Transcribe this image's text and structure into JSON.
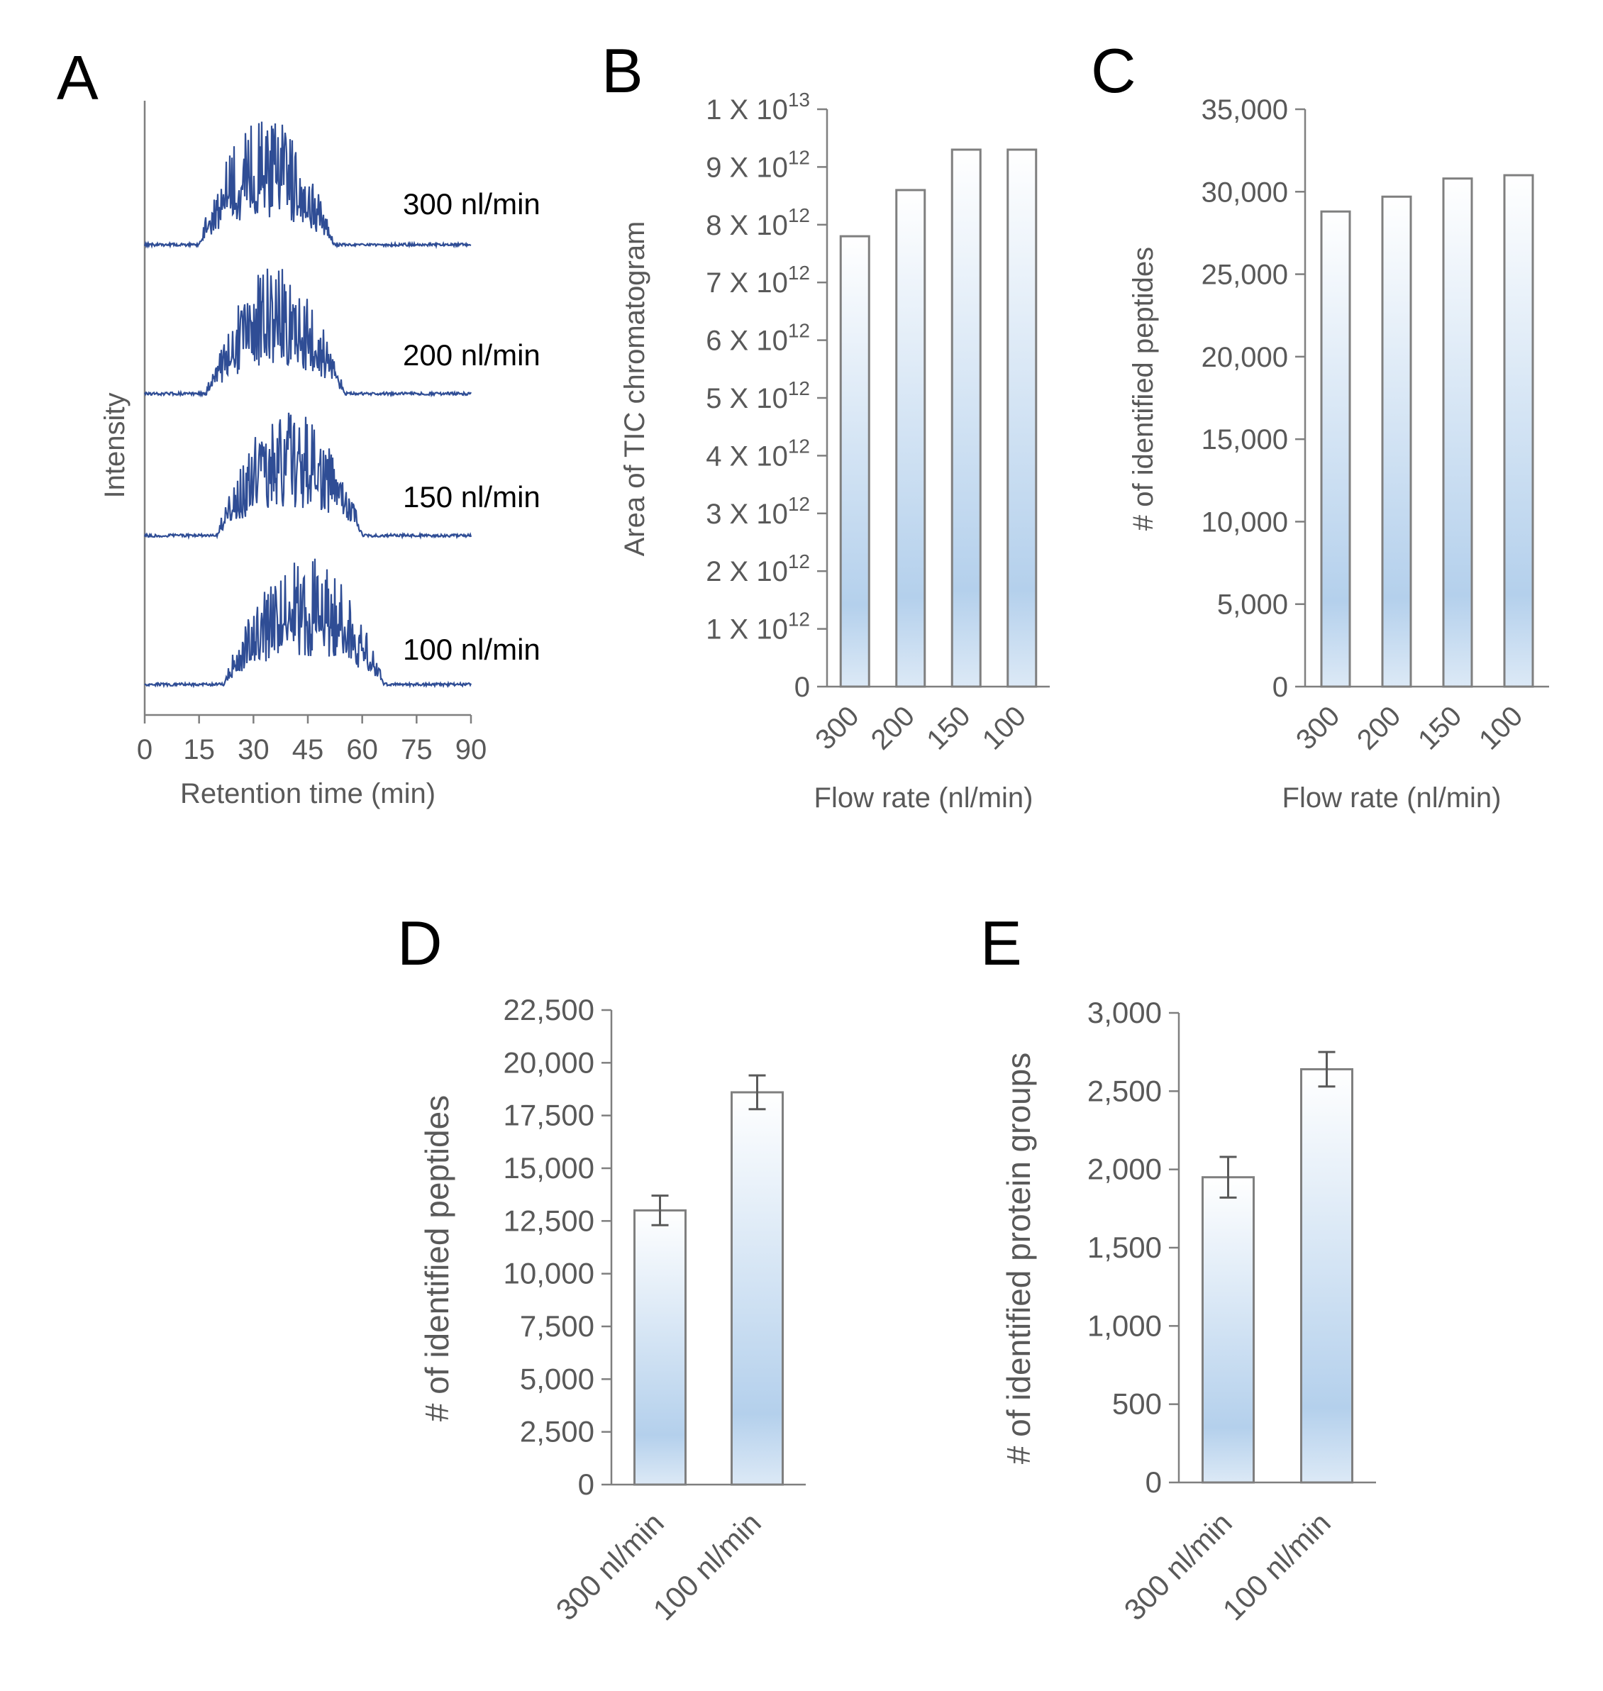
{
  "panels": {
    "A": {
      "letter": "A"
    },
    "B": {
      "letter": "B"
    },
    "C": {
      "letter": "C"
    },
    "D": {
      "letter": "D"
    },
    "E": {
      "letter": "E"
    }
  },
  "colors": {
    "trace": "#2f4d95",
    "bar_top": "#ffffff",
    "bar_mid": "#b4d0ec",
    "axis": "#7f7f7f",
    "text": "#595959"
  },
  "chart_data": [
    {
      "id": "A",
      "type": "line",
      "title": "",
      "xlabel": "Retention time (min)",
      "ylabel": "Intensity",
      "xlim": [
        0,
        90
      ],
      "xticks": [
        "0",
        "15",
        "30",
        "45",
        "60",
        "75",
        "90"
      ],
      "series": [
        {
          "name": "300 nl/min",
          "label": "300  nl/min",
          "onset": 15,
          "peak": 28,
          "end": 52
        },
        {
          "name": "200 nl/min",
          "label": "200  nl/min",
          "onset": 17,
          "peak": 31,
          "end": 55
        },
        {
          "name": "150 nl/min",
          "label": "150  nl/min",
          "onset": 20,
          "peak": 36,
          "end": 60
        },
        {
          "name": "100 nl/min",
          "label": "100  nl/min",
          "onset": 22,
          "peak": 43,
          "end": 66
        }
      ]
    },
    {
      "id": "B",
      "type": "bar",
      "title": "",
      "xlabel": "Flow rate (nl/min)",
      "ylabel": "Area of TIC chromatogram",
      "categories": [
        "300",
        "200",
        "150",
        "100"
      ],
      "values": [
        7.8,
        8.6,
        9.3,
        9.3
      ],
      "value_unit": "1 X 10^12",
      "ylim": [
        0,
        10
      ],
      "yticks": [
        {
          "v": 0,
          "base": "0",
          "exp": ""
        },
        {
          "v": 1,
          "base": "1 X 10",
          "exp": "12"
        },
        {
          "v": 2,
          "base": "2 X 10",
          "exp": "12"
        },
        {
          "v": 3,
          "base": "3 X 10",
          "exp": "12"
        },
        {
          "v": 4,
          "base": "4 X 10",
          "exp": "12"
        },
        {
          "v": 5,
          "base": "5 X 10",
          "exp": "12"
        },
        {
          "v": 6,
          "base": "6 X 10",
          "exp": "12"
        },
        {
          "v": 7,
          "base": "7 X 10",
          "exp": "12"
        },
        {
          "v": 8,
          "base": "8 X 10",
          "exp": "12"
        },
        {
          "v": 9,
          "base": "9 X 10",
          "exp": "12"
        },
        {
          "v": 10,
          "base": "1 X 10",
          "exp": "13"
        }
      ]
    },
    {
      "id": "C",
      "type": "bar",
      "title": "",
      "xlabel": "Flow rate (nl/min)",
      "ylabel": "# of identified  peptides",
      "categories": [
        "300",
        "200",
        "150",
        "100"
      ],
      "values": [
        28800,
        29700,
        30800,
        31000
      ],
      "ylim": [
        0,
        35000
      ],
      "yticks": [
        {
          "v": 0,
          "label": "0"
        },
        {
          "v": 5000,
          "label": "5,000"
        },
        {
          "v": 10000,
          "label": "10,000"
        },
        {
          "v": 15000,
          "label": "15,000"
        },
        {
          "v": 20000,
          "label": "20,000"
        },
        {
          "v": 25000,
          "label": "25,000"
        },
        {
          "v": 30000,
          "label": "30,000"
        },
        {
          "v": 35000,
          "label": "35,000"
        }
      ]
    },
    {
      "id": "D",
      "type": "bar",
      "title": "",
      "xlabel": "",
      "ylabel": "# of identified peptides",
      "categories": [
        "300 nl/min",
        "100 nl/min"
      ],
      "values": [
        13000,
        18600
      ],
      "errors": [
        700,
        800
      ],
      "ylim": [
        0,
        22500
      ],
      "yticks": [
        {
          "v": 0,
          "label": "0"
        },
        {
          "v": 2500,
          "label": "2,500"
        },
        {
          "v": 5000,
          "label": "5,000"
        },
        {
          "v": 7500,
          "label": "7,500"
        },
        {
          "v": 10000,
          "label": "10,000"
        },
        {
          "v": 12500,
          "label": "12,500"
        },
        {
          "v": 15000,
          "label": "15,000"
        },
        {
          "v": 17500,
          "label": "17,500"
        },
        {
          "v": 20000,
          "label": "20,000"
        },
        {
          "v": 22500,
          "label": "22,500"
        }
      ]
    },
    {
      "id": "E",
      "type": "bar",
      "title": "",
      "xlabel": "",
      "ylabel": "# of identified protein groups",
      "categories": [
        "300 nl/min",
        "100 nl/min"
      ],
      "values": [
        1950,
        2640
      ],
      "errors": [
        130,
        110
      ],
      "ylim": [
        0,
        3000
      ],
      "yticks": [
        {
          "v": 0,
          "label": "0"
        },
        {
          "v": 500,
          "label": "500"
        },
        {
          "v": 1000,
          "label": "1,000"
        },
        {
          "v": 1500,
          "label": "1,500"
        },
        {
          "v": 2000,
          "label": "2,000"
        },
        {
          "v": 2500,
          "label": "2,500"
        },
        {
          "v": 3000,
          "label": "3,000"
        }
      ]
    }
  ]
}
